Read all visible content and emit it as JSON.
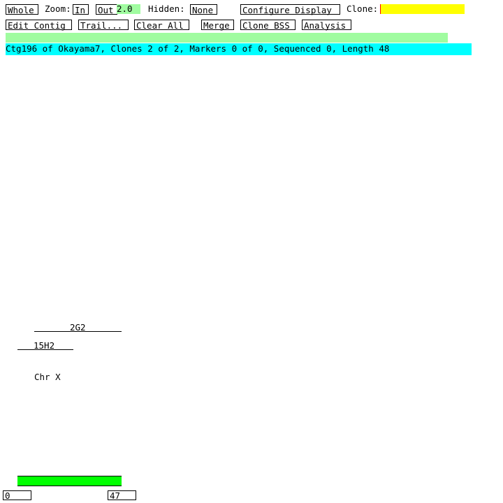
{
  "toolbar": {
    "whole": "Whole",
    "zoom_label": "Zoom:",
    "zoom_in": "In",
    "zoom_out": "Out",
    "zoom_value": "2.0",
    "hidden_label": "Hidden:",
    "hidden_value": "None",
    "configure_display": "Configure Display",
    "clone_label": "Clone:",
    "clone_value": "",
    "edit_contig": "Edit Contig",
    "trail": "Trail...",
    "clear_all": "Clear All",
    "merge": "Merge",
    "clone_bss": "Clone BSS",
    "analysis": "Analysis"
  },
  "status": "Ctg196 of Okayama7, Clones 2 of 2, Markers 0 of 0, Sequenced 0, Length 48",
  "clones": [
    {
      "name": "2G2"
    },
    {
      "name": "15H2"
    }
  ],
  "chromosome": "Chr X",
  "ruler": {
    "start": "0",
    "end": "47"
  },
  "colors": {
    "zoom_bg": "#a0fca0",
    "clone_field": "#ffff00",
    "status_bg": "#00ffff",
    "message_bar": "#a0fca0",
    "contig_bar": "#00ff00"
  }
}
